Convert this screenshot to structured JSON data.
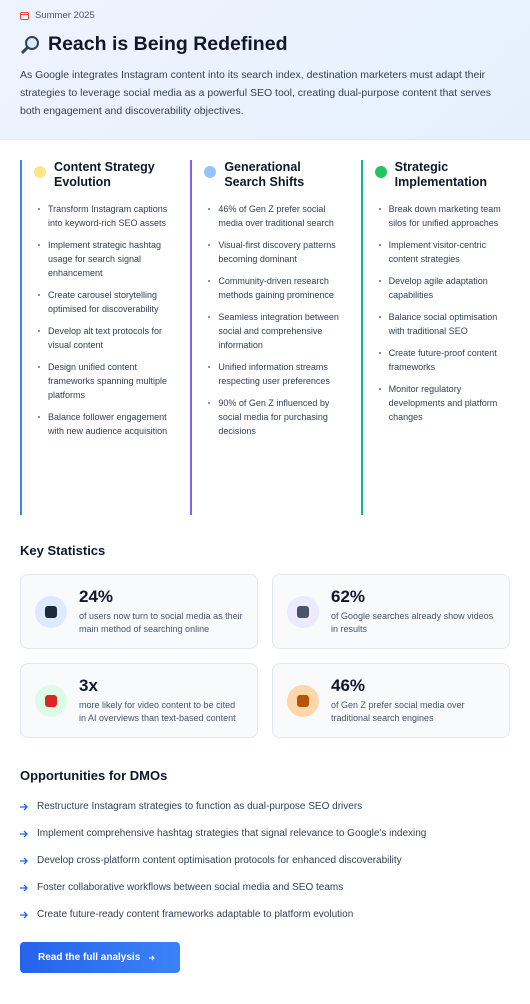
{
  "header": {
    "date": "Summer 2025",
    "title": "Reach is Being Redefined",
    "intro": "As Google integrates Instagram content into its search index, destination marketers must adapt their strategies to leverage social media as a powerful SEO tool, creating dual-purpose content that serves both engagement and discoverability objectives."
  },
  "columns": [
    {
      "title": "Content Strategy Evolution",
      "items": [
        "Transform Instagram captions into keyword-rich SEO assets",
        "Implement strategic hashtag usage for search signal enhancement",
        "Create carousel storytelling optimised for discoverability",
        "Develop alt text protocols for visual content",
        "Design unified content frameworks spanning multiple platforms",
        "Balance follower engagement with new audience acquisition"
      ]
    },
    {
      "title": "Generational Search Shifts",
      "items": [
        "46% of Gen Z prefer social media over traditional search",
        "Visual-first discovery patterns becoming dominant",
        "Community-driven research methods gaining prominence",
        "Seamless integration between social and comprehensive information",
        "Unified information streams respecting user preferences",
        "90% of Gen Z influenced by social media for purchasing decisions"
      ]
    },
    {
      "title": "Strategic Implementation",
      "items": [
        "Break down marketing team silos for unified approaches",
        "Implement visitor-centric content strategies",
        "Develop agile adaptation capabilities",
        "Balance social optimisation with traditional SEO",
        "Create future-proof content frameworks",
        "Monitor regulatory developments and platform changes"
      ]
    }
  ],
  "statistics": {
    "title": "Key Statistics",
    "cards": [
      {
        "value": "24%",
        "text": "of users now turn to social media as their main method of searching online"
      },
      {
        "value": "62%",
        "text": "of Google searches already show videos in results"
      },
      {
        "value": "3x",
        "text": "more likely for video content to be cited in AI overviews than text-based content"
      },
      {
        "value": "46%",
        "text": "of Gen Z prefer social media over traditional search engines"
      }
    ]
  },
  "opportunities": {
    "title": "Opportunities for DMOs",
    "items": [
      "Restructure Instagram strategies to function as dual-purpose SEO drivers",
      "Implement comprehensive hashtag strategies that signal relevance to Google's indexing",
      "Develop cross-platform content optimisation protocols for enhanced discoverability",
      "Foster collaborative workflows between social media and SEO teams",
      "Create future-ready content frameworks adaptable to platform evolution"
    ]
  },
  "cta": {
    "label": "Read the full analysis"
  }
}
